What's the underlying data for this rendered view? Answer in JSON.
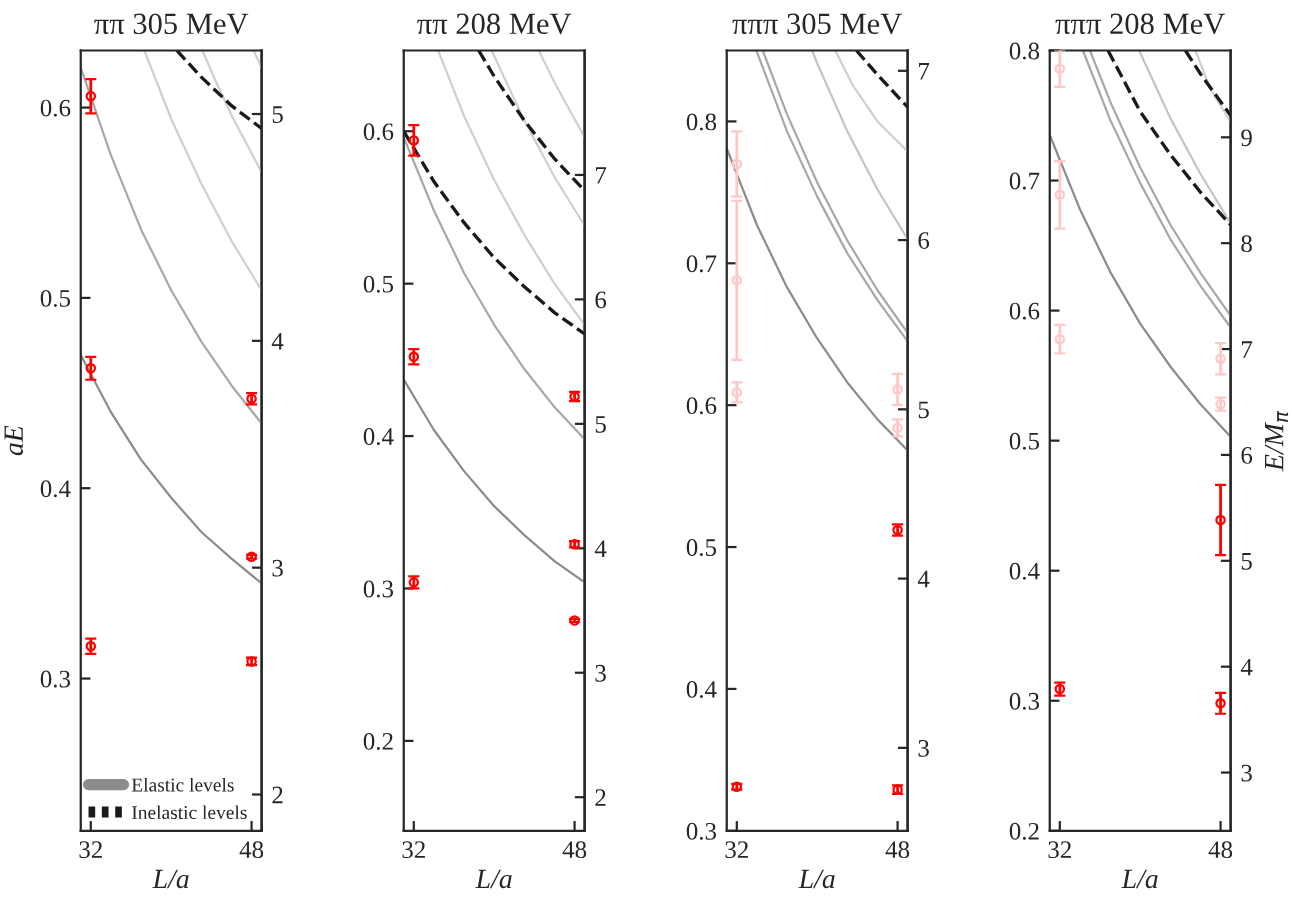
{
  "chart_data": [
    {
      "type": "scatter",
      "title": "ππ 305 MeV",
      "xlabel": "L/a",
      "ylabel": "aE",
      "xlim": [
        31,
        49
      ],
      "xticks": [
        32,
        48
      ],
      "ylim": [
        0.22,
        0.63
      ],
      "yticks": [
        0.3,
        0.4,
        0.5,
        0.6
      ],
      "y2lim": [
        1.84,
        5.28
      ],
      "y2ticks": [
        2,
        3,
        4,
        5
      ],
      "legend": "bottom left",
      "series": [
        {
          "type": "line",
          "name": "Elastic levels",
          "color": "#8c8c8c",
          "line_style": "solid",
          "x": [
            31,
            34,
            37,
            40,
            43,
            46,
            49
          ],
          "values": [
            0.47,
            0.44,
            0.415,
            0.395,
            0.377,
            0.363,
            0.35
          ]
        },
        {
          "type": "line",
          "color": "#a8a8a8",
          "line_style": "solid",
          "x": [
            31,
            34,
            37,
            40,
            43,
            46,
            49
          ],
          "values": [
            0.621,
            0.575,
            0.536,
            0.504,
            0.477,
            0.454,
            0.434
          ]
        },
        {
          "type": "line",
          "color": "#cfcfcf",
          "line_style": "solid",
          "x": [
            37.33,
            40,
            43,
            46,
            49
          ],
          "values": [
            0.63,
            0.594,
            0.56,
            0.53,
            0.504
          ]
        },
        {
          "type": "line",
          "color": "#cfcfcf",
          "line_style": "solid",
          "x": [
            43.11,
            44.5,
            46,
            47.5,
            49
          ],
          "values": [
            0.63,
            0.613,
            0.596,
            0.581,
            0.566
          ]
        },
        {
          "type": "line",
          "color": "#cfcfcf",
          "line_style": "solid",
          "x": [
            48.2,
            49
          ],
          "values": [
            0.63,
            0.621
          ]
        },
        {
          "type": "line",
          "name": "Inelastic levels",
          "color": "#1a1a1a",
          "line_style": "dashed",
          "x": [
            40.56,
            43,
            46,
            49
          ],
          "values": [
            0.63,
            0.616,
            0.601,
            0.589
          ]
        },
        {
          "type": "scatter",
          "color": "#ff0000",
          "marker": "circle",
          "x": [
            32,
            32,
            32,
            48,
            48,
            48
          ],
          "values": [
            0.606,
            0.463,
            0.317,
            0.447,
            0.364,
            0.309
          ],
          "errors": [
            0.009,
            0.006,
            0.004,
            0.003,
            0.001,
            0.002
          ]
        }
      ]
    },
    {
      "type": "scatter",
      "title": "ππ 208 MeV",
      "xlabel": "L/a",
      "xlim": [
        31,
        49
      ],
      "xticks": [
        32,
        48
      ],
      "ylim": [
        0.141,
        0.653
      ],
      "yticks": [
        0.2,
        0.3,
        0.4,
        0.5,
        0.6
      ],
      "y2lim": [
        1.73,
        8.0
      ],
      "y2ticks": [
        2,
        3,
        4,
        5,
        6,
        7
      ],
      "series": [
        {
          "type": "line",
          "color": "#8c8c8c",
          "line_style": "solid",
          "x": [
            31,
            34,
            37,
            40,
            43,
            46,
            49
          ],
          "values": [
            0.437,
            0.404,
            0.377,
            0.354,
            0.335,
            0.318,
            0.304
          ]
        },
        {
          "type": "line",
          "color": "#a8a8a8",
          "line_style": "solid",
          "x": [
            31,
            34,
            37,
            40,
            43,
            46,
            49
          ],
          "values": [
            0.596,
            0.548,
            0.507,
            0.473,
            0.444,
            0.419,
            0.398
          ]
        },
        {
          "type": "line",
          "color": "#cfcfcf",
          "line_style": "solid",
          "x": [
            34.42,
            37,
            40,
            43,
            46,
            49
          ],
          "values": [
            0.653,
            0.61,
            0.568,
            0.532,
            0.5,
            0.473
          ]
        },
        {
          "type": "line",
          "color": "#cfcfcf",
          "line_style": "solid",
          "x": [
            39.75,
            43,
            46,
            49
          ],
          "values": [
            0.653,
            0.607,
            0.57,
            0.538
          ]
        },
        {
          "type": "line",
          "color": "#cfcfcf",
          "line_style": "solid",
          "x": [
            44.44,
            46,
            49
          ],
          "values": [
            0.653,
            0.632,
            0.596
          ]
        },
        {
          "type": "line",
          "color": "#1a1a1a",
          "line_style": "dashed",
          "x": [
            31,
            34,
            37,
            40,
            43,
            46,
            49
          ],
          "values": [
            0.6,
            0.567,
            0.54,
            0.517,
            0.498,
            0.481,
            0.467
          ]
        },
        {
          "type": "line",
          "color": "#1a1a1a",
          "line_style": "dashed",
          "x": [
            38.46,
            40,
            43,
            46,
            49
          ],
          "values": [
            0.653,
            0.636,
            0.607,
            0.582,
            0.561
          ]
        },
        {
          "type": "scatter",
          "color": "#ff0000",
          "marker": "circle",
          "x": [
            32,
            32,
            32,
            48,
            48,
            48
          ],
          "values": [
            0.594,
            0.452,
            0.304,
            0.426,
            0.329,
            0.279
          ],
          "errors": [
            0.01,
            0.005,
            0.004,
            0.003,
            0.002,
            0.001
          ]
        }
      ]
    },
    {
      "type": "scatter",
      "title": "πππ 305 MeV",
      "xlabel": "L/a",
      "xlim": [
        31,
        49
      ],
      "xticks": [
        32,
        48
      ],
      "ylim": [
        0.3,
        0.85
      ],
      "yticks": [
        0.3,
        0.4,
        0.5,
        0.6,
        0.7,
        0.8
      ],
      "y2lim": [
        2.51,
        7.12
      ],
      "y2ticks": [
        3,
        4,
        5,
        6,
        7
      ],
      "series": [
        {
          "type": "line",
          "color": "#8c8c8c",
          "line_style": "solid",
          "x": [
            31,
            34,
            37,
            40,
            43,
            46,
            49
          ],
          "values": [
            0.781,
            0.727,
            0.683,
            0.647,
            0.616,
            0.59,
            0.568
          ]
        },
        {
          "type": "line",
          "color": "#a8a8a8",
          "line_style": "solid",
          "x": [
            34,
            37,
            40,
            43,
            46,
            49
          ],
          "values": [
            0.849,
            0.793,
            0.747,
            0.707,
            0.674,
            0.645
          ]
        },
        {
          "type": "line",
          "color": "#a8a8a8",
          "line_style": "solid",
          "x": [
            34.58,
            37,
            40,
            43,
            46,
            49
          ],
          "values": [
            0.85,
            0.805,
            0.757,
            0.716,
            0.681,
            0.651
          ]
        },
        {
          "type": "line",
          "color": "#c4c4c4",
          "line_style": "solid",
          "x": [
            39.5,
            40,
            43,
            46,
            49
          ],
          "values": [
            0.85,
            0.841,
            0.793,
            0.752,
            0.717
          ]
        },
        {
          "type": "line",
          "color": "#cfcfcf",
          "line_style": "solid",
          "x": [
            41.8,
            43.5,
            46,
            49
          ],
          "values": [
            0.85,
            0.826,
            0.8,
            0.779
          ]
        },
        {
          "type": "line",
          "color": "#1a1a1a",
          "line_style": "dashed",
          "x": [
            43.9,
            46,
            49
          ],
          "values": [
            0.85,
            0.833,
            0.81
          ]
        },
        {
          "type": "scatter",
          "color": "#ffc8c8",
          "marker": "circle",
          "x": [
            32,
            32,
            32,
            48,
            48
          ],
          "values": [
            0.77,
            0.688,
            0.609,
            0.611,
            0.584
          ],
          "errors": [
            0.023,
            0.056,
            0.007,
            0.011,
            0.006
          ]
        },
        {
          "type": "scatter",
          "color": "#ff0000",
          "marker": "circle",
          "x": [
            32,
            48,
            48
          ],
          "values": [
            0.331,
            0.512,
            0.329
          ],
          "errors": [
            0.002,
            0.004,
            0.003
          ]
        }
      ]
    },
    {
      "type": "scatter",
      "title": "πππ 208 MeV",
      "xlabel": "L/a",
      "y2label": "E/M$_{π}$",
      "xlim": [
        31,
        49
      ],
      "xticks": [
        32,
        48
      ],
      "ylim": [
        0.2,
        0.8
      ],
      "yticks": [
        0.2,
        0.3,
        0.4,
        0.5,
        0.6,
        0.7,
        0.8
      ],
      "y2lim": [
        2.45,
        9.82
      ],
      "y2ticks": [
        3,
        4,
        5,
        6,
        7,
        8,
        9
      ],
      "series": [
        {
          "type": "line",
          "color": "#8c8c8c",
          "line_style": "solid",
          "x": [
            31,
            34,
            37,
            40,
            43,
            46,
            49
          ],
          "values": [
            0.735,
            0.678,
            0.63,
            0.59,
            0.557,
            0.528,
            0.503
          ]
        },
        {
          "type": "line",
          "color": "#a8a8a8",
          "line_style": "solid",
          "x": [
            34.3,
            37,
            40,
            43,
            46,
            49
          ],
          "values": [
            0.8,
            0.747,
            0.698,
            0.655,
            0.619,
            0.587
          ]
        },
        {
          "type": "line",
          "color": "#a8a8a8",
          "line_style": "solid",
          "x": [
            35,
            37,
            40,
            43,
            46,
            49
          ],
          "values": [
            0.8,
            0.761,
            0.71,
            0.666,
            0.629,
            0.596
          ]
        },
        {
          "type": "line",
          "color": "#c4c4c4",
          "line_style": "solid",
          "x": [
            39.9,
            43,
            46,
            49
          ],
          "values": [
            0.8,
            0.748,
            0.705,
            0.667
          ]
        },
        {
          "type": "line",
          "color": "#cfcfcf",
          "line_style": "solid",
          "x": [
            45.5,
            47,
            49
          ],
          "values": [
            0.8,
            0.77,
            0.745
          ]
        },
        {
          "type": "line",
          "color": "#1a1a1a",
          "line_style": "dashed",
          "x": [
            36.8,
            40,
            43,
            46,
            49
          ],
          "values": [
            0.8,
            0.753,
            0.72,
            0.691,
            0.666
          ]
        },
        {
          "type": "line",
          "color": "#1a1a1a",
          "line_style": "dashed",
          "x": [
            44.5,
            46,
            49
          ],
          "values": [
            0.8,
            0.782,
            0.75
          ]
        },
        {
          "type": "scatter",
          "color": "#ffc8c8",
          "marker": "circle",
          "x": [
            32,
            32,
            32,
            48,
            48
          ],
          "values": [
            0.786,
            0.689,
            0.578,
            0.563,
            0.528
          ],
          "errors": [
            0.014,
            0.026,
            0.011,
            0.012,
            0.005
          ]
        },
        {
          "type": "scatter",
          "color": "#ff0000",
          "marker": "circle",
          "x": [
            32,
            48,
            48
          ],
          "values": [
            0.309,
            0.439,
            0.298
          ],
          "errors": [
            0.005,
            0.027,
            0.008
          ]
        }
      ]
    }
  ]
}
